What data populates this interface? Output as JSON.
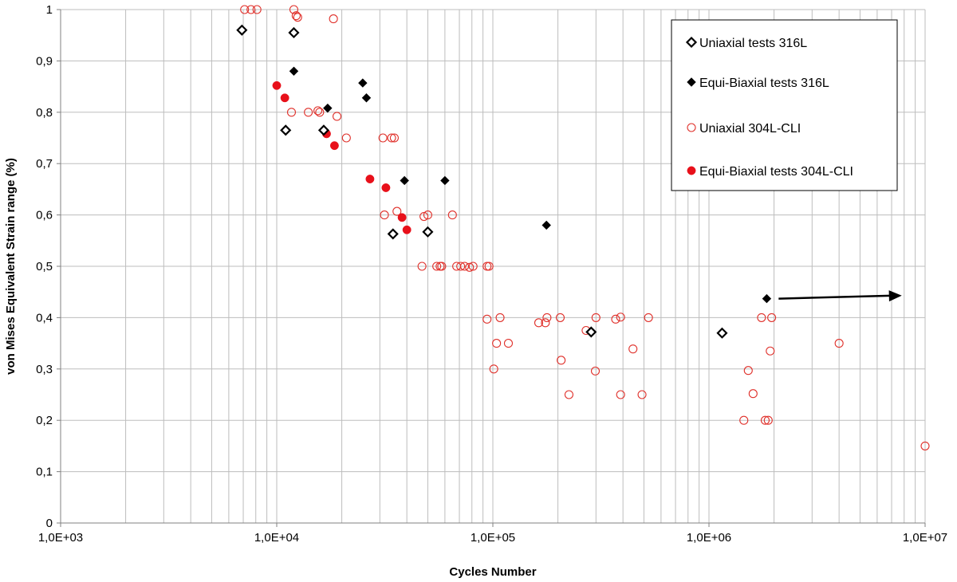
{
  "chart_data": {
    "type": "scatter",
    "title": "",
    "xlabel": "Cycles Number",
    "ylabel": "von Mises Equivalent Strain range (%)",
    "x_scale": "log",
    "xlim": [
      1000,
      10000000
    ],
    "ylim": [
      0,
      1
    ],
    "x_ticks": [
      {
        "value": 1000,
        "label": "1,0E+03"
      },
      {
        "value": 10000,
        "label": "1,0E+04"
      },
      {
        "value": 100000,
        "label": "1,0E+05"
      },
      {
        "value": 1000000,
        "label": "1,0E+06"
      },
      {
        "value": 10000000,
        "label": "1,0E+07"
      }
    ],
    "y_ticks": [
      {
        "value": 0,
        "label": "0"
      },
      {
        "value": 0.1,
        "label": "0,1"
      },
      {
        "value": 0.2,
        "label": "0,2"
      },
      {
        "value": 0.3,
        "label": "0,3"
      },
      {
        "value": 0.4,
        "label": "0,4"
      },
      {
        "value": 0.5,
        "label": "0,5"
      },
      {
        "value": 0.6,
        "label": "0,6"
      },
      {
        "value": 0.7,
        "label": "0,7"
      },
      {
        "value": 0.8,
        "label": "0,8"
      },
      {
        "value": 0.9,
        "label": "0,9"
      },
      {
        "value": 1,
        "label": "1"
      }
    ],
    "grid": "major and minor (log x), major y",
    "legend_position": "top-right",
    "series": [
      {
        "name": "Uniaxial tests 316L",
        "marker": "diamond-open",
        "color": "#000000",
        "points": [
          [
            6900,
            0.96
          ],
          [
            12000,
            0.955
          ],
          [
            11000,
            0.765
          ],
          [
            16500,
            0.765
          ],
          [
            34500,
            0.563
          ],
          [
            50000,
            0.567
          ],
          [
            285000,
            0.372
          ],
          [
            1150000,
            0.37
          ]
        ]
      },
      {
        "name": "Equi-Biaxial tests 316L",
        "marker": "diamond-filled",
        "color": "#000000",
        "points": [
          [
            12000,
            0.88
          ],
          [
            17200,
            0.808
          ],
          [
            25000,
            0.857
          ],
          [
            26000,
            0.828
          ],
          [
            39000,
            0.667
          ],
          [
            60000,
            0.667
          ],
          [
            177000,
            0.58
          ],
          [
            1850000,
            0.437
          ]
        ]
      },
      {
        "name": "Uniaxial 304L-CLI",
        "marker": "circle-open",
        "color": "#e0312b",
        "points": [
          [
            7100,
            1.0
          ],
          [
            7600,
            1.0
          ],
          [
            8100,
            1.0
          ],
          [
            12000,
            1.0
          ],
          [
            12300,
            0.988
          ],
          [
            12500,
            0.985
          ],
          [
            18300,
            0.982
          ],
          [
            11700,
            0.8
          ],
          [
            14000,
            0.8
          ],
          [
            15500,
            0.803
          ],
          [
            15800,
            0.8
          ],
          [
            19000,
            0.792
          ],
          [
            21000,
            0.75
          ],
          [
            31000,
            0.75
          ],
          [
            34000,
            0.75
          ],
          [
            35000,
            0.75
          ],
          [
            31500,
            0.6
          ],
          [
            36000,
            0.607
          ],
          [
            48000,
            0.597
          ],
          [
            50000,
            0.6
          ],
          [
            65000,
            0.6
          ],
          [
            47000,
            0.5
          ],
          [
            55000,
            0.5
          ],
          [
            57000,
            0.5
          ],
          [
            58000,
            0.5
          ],
          [
            68000,
            0.5
          ],
          [
            71000,
            0.5
          ],
          [
            74000,
            0.5
          ],
          [
            78000,
            0.498
          ],
          [
            81000,
            0.5
          ],
          [
            94000,
            0.5
          ],
          [
            96000,
            0.5
          ],
          [
            94000,
            0.397
          ],
          [
            108000,
            0.4
          ],
          [
            104000,
            0.35
          ],
          [
            118000,
            0.35
          ],
          [
            101000,
            0.3
          ],
          [
            163000,
            0.39
          ],
          [
            175000,
            0.39
          ],
          [
            178000,
            0.4
          ],
          [
            205000,
            0.4
          ],
          [
            270000,
            0.375
          ],
          [
            300000,
            0.4
          ],
          [
            370000,
            0.397
          ],
          [
            390000,
            0.401
          ],
          [
            525000,
            0.4
          ],
          [
            207000,
            0.317
          ],
          [
            225000,
            0.25
          ],
          [
            298000,
            0.296
          ],
          [
            445000,
            0.339
          ],
          [
            390000,
            0.25
          ],
          [
            490000,
            0.25
          ],
          [
            1750000,
            0.4
          ],
          [
            1950000,
            0.4
          ],
          [
            1520000,
            0.297
          ],
          [
            1600000,
            0.252
          ],
          [
            1920000,
            0.335
          ],
          [
            1450000,
            0.2
          ],
          [
            1820000,
            0.2
          ],
          [
            1880000,
            0.2
          ],
          [
            4000000,
            0.35
          ],
          [
            10000000,
            0.15
          ]
        ]
      },
      {
        "name": "Equi-Biaxial tests 304L-CLI",
        "marker": "circle-filled",
        "color": "#e8101a",
        "points": [
          [
            10000,
            0.852
          ],
          [
            10900,
            0.828
          ],
          [
            17000,
            0.758
          ],
          [
            18500,
            0.735
          ],
          [
            27000,
            0.67
          ],
          [
            32000,
            0.653
          ],
          [
            38000,
            0.595
          ],
          [
            40000,
            0.571
          ]
        ]
      }
    ],
    "annotations": [
      {
        "type": "arrow",
        "from": [
          2100000,
          0.437
        ],
        "to": [
          7800000,
          0.443
        ],
        "color": "#000000"
      }
    ]
  }
}
